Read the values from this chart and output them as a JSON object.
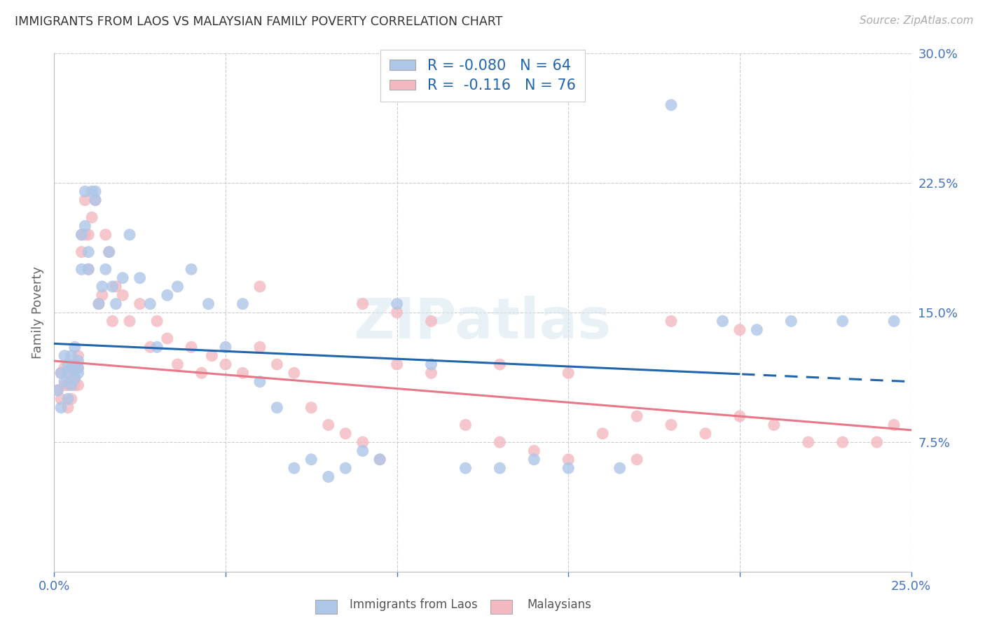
{
  "title": "IMMIGRANTS FROM LAOS VS MALAYSIAN FAMILY POVERTY CORRELATION CHART",
  "source": "Source: ZipAtlas.com",
  "ylabel": "Family Poverty",
  "xmin": 0.0,
  "xmax": 0.25,
  "ymin": 0.0,
  "ymax": 0.3,
  "series1_label": "Immigrants from Laos",
  "series1_color": "#aec6e8",
  "series1_R": -0.08,
  "series1_N": 64,
  "series2_label": "Malaysians",
  "series2_color": "#f4b8c1",
  "series2_R": -0.116,
  "series2_N": 76,
  "watermark_text": "ZIPatlas",
  "blue_line_color": "#2166ac",
  "pink_line_color": "#e8778a",
  "blue_line_start_y": 0.132,
  "blue_line_end_y": 0.11,
  "pink_line_start_y": 0.122,
  "pink_line_end_y": 0.082,
  "laos_x": [
    0.001,
    0.002,
    0.002,
    0.003,
    0.003,
    0.004,
    0.004,
    0.004,
    0.005,
    0.005,
    0.005,
    0.006,
    0.006,
    0.006,
    0.007,
    0.007,
    0.007,
    0.008,
    0.008,
    0.009,
    0.009,
    0.01,
    0.01,
    0.011,
    0.012,
    0.012,
    0.013,
    0.014,
    0.015,
    0.016,
    0.017,
    0.018,
    0.02,
    0.022,
    0.025,
    0.028,
    0.03,
    0.033,
    0.036,
    0.04,
    0.045,
    0.05,
    0.055,
    0.06,
    0.065,
    0.07,
    0.075,
    0.08,
    0.085,
    0.09,
    0.095,
    0.1,
    0.11,
    0.12,
    0.13,
    0.14,
    0.15,
    0.165,
    0.18,
    0.195,
    0.205,
    0.215,
    0.23,
    0.245
  ],
  "laos_y": [
    0.105,
    0.115,
    0.095,
    0.11,
    0.125,
    0.1,
    0.115,
    0.12,
    0.108,
    0.118,
    0.125,
    0.112,
    0.12,
    0.13,
    0.115,
    0.122,
    0.118,
    0.195,
    0.175,
    0.22,
    0.2,
    0.175,
    0.185,
    0.22,
    0.22,
    0.215,
    0.155,
    0.165,
    0.175,
    0.185,
    0.165,
    0.155,
    0.17,
    0.195,
    0.17,
    0.155,
    0.13,
    0.16,
    0.165,
    0.175,
    0.155,
    0.13,
    0.155,
    0.11,
    0.095,
    0.06,
    0.065,
    0.055,
    0.06,
    0.07,
    0.065,
    0.155,
    0.12,
    0.06,
    0.06,
    0.065,
    0.06,
    0.06,
    0.27,
    0.145,
    0.14,
    0.145,
    0.145,
    0.145
  ],
  "malay_x": [
    0.001,
    0.002,
    0.002,
    0.003,
    0.003,
    0.004,
    0.004,
    0.004,
    0.005,
    0.005,
    0.005,
    0.006,
    0.006,
    0.006,
    0.007,
    0.007,
    0.007,
    0.008,
    0.008,
    0.009,
    0.009,
    0.01,
    0.01,
    0.011,
    0.012,
    0.013,
    0.014,
    0.015,
    0.016,
    0.017,
    0.018,
    0.02,
    0.022,
    0.025,
    0.028,
    0.03,
    0.033,
    0.036,
    0.04,
    0.043,
    0.046,
    0.05,
    0.055,
    0.06,
    0.065,
    0.07,
    0.075,
    0.08,
    0.085,
    0.09,
    0.095,
    0.1,
    0.11,
    0.12,
    0.13,
    0.14,
    0.15,
    0.16,
    0.17,
    0.18,
    0.19,
    0.2,
    0.21,
    0.22,
    0.23,
    0.24,
    0.245,
    0.15,
    0.17,
    0.13,
    0.06,
    0.09,
    0.1,
    0.11,
    0.18,
    0.2
  ],
  "malay_y": [
    0.105,
    0.1,
    0.115,
    0.108,
    0.118,
    0.095,
    0.108,
    0.115,
    0.1,
    0.11,
    0.118,
    0.108,
    0.112,
    0.12,
    0.108,
    0.118,
    0.125,
    0.195,
    0.185,
    0.215,
    0.195,
    0.175,
    0.195,
    0.205,
    0.215,
    0.155,
    0.16,
    0.195,
    0.185,
    0.145,
    0.165,
    0.16,
    0.145,
    0.155,
    0.13,
    0.145,
    0.135,
    0.12,
    0.13,
    0.115,
    0.125,
    0.12,
    0.115,
    0.13,
    0.12,
    0.115,
    0.095,
    0.085,
    0.08,
    0.075,
    0.065,
    0.12,
    0.115,
    0.085,
    0.075,
    0.07,
    0.065,
    0.08,
    0.065,
    0.085,
    0.08,
    0.09,
    0.085,
    0.075,
    0.075,
    0.075,
    0.085,
    0.115,
    0.09,
    0.12,
    0.165,
    0.155,
    0.15,
    0.145,
    0.145,
    0.14
  ]
}
